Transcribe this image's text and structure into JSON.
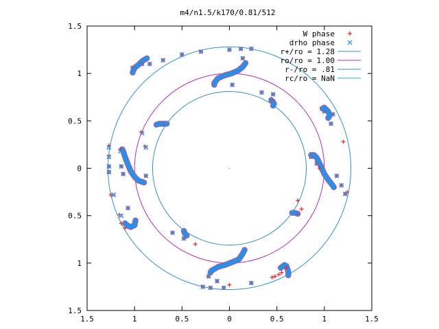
{
  "chart_data": {
    "type": "scatter",
    "title": "m4/n1.5/k170/0.81/512",
    "xlim": [
      -1.5,
      1.5
    ],
    "ylim": [
      -1.5,
      1.5
    ],
    "x_ticks": [
      -1.5,
      -1,
      -0.5,
      0,
      0.5,
      1,
      1.5
    ],
    "y_ticks": [
      -1.5,
      -1,
      -0.5,
      0,
      0.5,
      1,
      1.5
    ],
    "x_tick_labels": [
      "1.5",
      "1",
      "0.5",
      "0",
      "0.5",
      "1",
      "1.5"
    ],
    "y_tick_labels": [
      "1.5",
      "1",
      "0.5",
      "0",
      "0.5",
      "1",
      "1.5"
    ],
    "grid": false,
    "legend_position": "top-right",
    "legend": [
      {
        "label": "W phase",
        "marker": "plus",
        "color": "#e8302a"
      },
      {
        "label": "drho phase",
        "marker": "cross",
        "color": "#2b8fe8"
      },
      {
        "label": "r+/ro = 1.28",
        "marker": "line",
        "color": "#2d93c7"
      },
      {
        "label": "ro/ro = 1.00",
        "marker": "line",
        "color": "#b52ab5"
      },
      {
        "label": "r-/ro = .81",
        "marker": "line",
        "color": "#2d93c7"
      },
      {
        "label": "rc/ro = NaN",
        "marker": "line",
        "color": "#20b7c0"
      }
    ],
    "circles": [
      {
        "name": "r+/ro = 1.28",
        "r": 1.28,
        "color": "#2d93c7"
      },
      {
        "name": "ro/ro = 1.00",
        "r": 1.0,
        "color": "#b52ab5"
      },
      {
        "name": "r-/ro = .81",
        "r": 0.81,
        "color": "#2d93c7"
      }
    ],
    "series": [
      {
        "name": "W phase",
        "color": "#e8302a",
        "marker": "plus",
        "points": [
          [
            -1.27,
            0.24
          ],
          [
            -1.27,
            0.13
          ],
          [
            -1.27,
            0.02
          ],
          [
            -1.27,
            -0.04
          ],
          [
            -1.15,
            0.2
          ],
          [
            -1.14,
            0.02
          ],
          [
            -1.12,
            -0.06
          ],
          [
            -1.25,
            -0.28
          ],
          [
            -1.07,
            -0.42
          ],
          [
            -1.16,
            -0.49
          ],
          [
            -1.14,
            -0.58
          ],
          [
            -1.1,
            -0.63
          ],
          [
            -0.93,
            0.38
          ],
          [
            -0.89,
            0.23
          ],
          [
            -0.88,
            -0.08
          ],
          [
            -0.7,
            0.46
          ],
          [
            -1.02,
            1.06
          ],
          [
            -0.92,
            1.1
          ],
          [
            -0.84,
            1.1
          ],
          [
            -0.7,
            1.14
          ],
          [
            -0.5,
            1.2
          ],
          [
            -0.3,
            1.23
          ],
          [
            -0.6,
            -0.68
          ],
          [
            -0.48,
            -0.74
          ],
          [
            -0.36,
            -0.8
          ],
          [
            -0.28,
            -1.25
          ],
          [
            -0.2,
            -1.26
          ],
          [
            -0.06,
            -1.26
          ],
          [
            0.0,
            -1.23
          ],
          [
            -0.22,
            -1.14
          ],
          [
            -0.13,
            -1.19
          ],
          [
            0.23,
            -1.21
          ],
          [
            0.0,
            1.25
          ],
          [
            0.12,
            1.26
          ],
          [
            0.23,
            1.26
          ],
          [
            0.14,
            1.16
          ],
          [
            0.03,
            0.88
          ],
          [
            0.34,
            0.8
          ],
          [
            0.46,
            0.78
          ],
          [
            0.45,
            0.71
          ],
          [
            0.45,
            -1.15
          ],
          [
            0.48,
            -1.14
          ],
          [
            0.52,
            -1.12
          ],
          [
            0.55,
            -1.1
          ],
          [
            0.6,
            -1.05
          ],
          [
            0.72,
            -0.48
          ],
          [
            0.76,
            -0.43
          ],
          [
            0.72,
            -0.34
          ],
          [
            0.86,
            0.12
          ],
          [
            0.92,
            0.05
          ],
          [
            0.95,
            0.0
          ],
          [
            1.0,
            0.6
          ],
          [
            1.07,
            0.47
          ],
          [
            1.09,
            0.57
          ],
          [
            1.2,
            0.28
          ],
          [
            1.13,
            -0.08
          ],
          [
            1.18,
            -0.18
          ],
          [
            1.22,
            -0.27
          ],
          [
            1.24,
            -0.25
          ]
        ]
      },
      {
        "name": "drho phase",
        "color": "#2b8fe8",
        "marker": "cross",
        "points": [
          [
            -1.27,
            0.22
          ],
          [
            -1.27,
            0.12
          ],
          [
            -1.27,
            0.02
          ],
          [
            -1.27,
            -0.04
          ],
          [
            -1.15,
            0.18
          ],
          [
            -1.14,
            0.02
          ],
          [
            -1.12,
            -0.06
          ],
          [
            -1.22,
            -0.28
          ],
          [
            -1.07,
            -0.42
          ],
          [
            -1.14,
            -0.5
          ],
          [
            -1.1,
            -0.58
          ],
          [
            -0.92,
            0.37
          ],
          [
            -0.88,
            0.22
          ],
          [
            -0.88,
            -0.08
          ],
          [
            -0.7,
            0.46
          ],
          [
            -1.02,
            1.06
          ],
          [
            -0.92,
            1.1
          ],
          [
            -0.84,
            1.1
          ],
          [
            -0.7,
            1.14
          ],
          [
            -0.5,
            1.2
          ],
          [
            -0.3,
            1.23
          ],
          [
            -0.6,
            -0.68
          ],
          [
            -0.48,
            -0.74
          ],
          [
            -0.28,
            -1.25
          ],
          [
            -0.2,
            -1.26
          ],
          [
            -0.06,
            -1.26
          ],
          [
            -0.22,
            -1.14
          ],
          [
            -0.13,
            -1.19
          ],
          [
            0.23,
            -1.21
          ],
          [
            0.0,
            1.25
          ],
          [
            0.12,
            1.26
          ],
          [
            0.23,
            1.26
          ],
          [
            0.14,
            1.16
          ],
          [
            0.03,
            0.88
          ],
          [
            0.34,
            0.8
          ],
          [
            0.46,
            0.78
          ],
          [
            0.45,
            0.71
          ],
          [
            0.72,
            -0.48
          ],
          [
            0.86,
            0.12
          ],
          [
            0.92,
            0.05
          ],
          [
            1.0,
            0.6
          ],
          [
            1.07,
            0.47
          ],
          [
            1.09,
            0.57
          ],
          [
            1.13,
            -0.08
          ],
          [
            1.18,
            -0.18
          ],
          [
            1.22,
            -0.27
          ]
        ]
      }
    ],
    "dense_curves": [
      {
        "name": "curl-left",
        "color": "#2b8fe8",
        "points": [
          [
            -1.13,
            0.2
          ],
          [
            -1.12,
            0.18
          ],
          [
            -1.1,
            0.12
          ],
          [
            -1.07,
            0.04
          ],
          [
            -1.04,
            -0.03
          ],
          [
            -1.0,
            -0.09
          ],
          [
            -0.96,
            -0.13
          ],
          [
            -0.9,
            -0.15
          ]
        ]
      },
      {
        "name": "curl-right",
        "color": "#2b8fe8",
        "points": [
          [
            0.86,
            0.14
          ],
          [
            0.89,
            0.14
          ],
          [
            0.92,
            0.11
          ],
          [
            0.96,
            0.03
          ],
          [
            1.0,
            -0.06
          ],
          [
            1.04,
            -0.12
          ],
          [
            1.08,
            -0.17
          ],
          [
            1.1,
            -0.2
          ]
        ]
      },
      {
        "name": "curl-top",
        "color": "#2b8fe8",
        "points": [
          [
            -0.16,
            0.88
          ],
          [
            -0.16,
            0.9
          ],
          [
            -0.12,
            0.95
          ],
          [
            -0.05,
            0.98
          ],
          [
            0.02,
            1.0
          ],
          [
            0.09,
            1.03
          ],
          [
            0.14,
            1.07
          ],
          [
            0.17,
            1.11
          ]
        ]
      },
      {
        "name": "curl-bottom",
        "color": "#2b8fe8",
        "points": [
          [
            -0.2,
            -1.1
          ],
          [
            -0.19,
            -1.08
          ],
          [
            -0.12,
            -1.04
          ],
          [
            -0.05,
            -1.02
          ],
          [
            0.03,
            -0.99
          ],
          [
            0.1,
            -0.96
          ],
          [
            0.14,
            -0.9
          ],
          [
            0.16,
            -0.86
          ]
        ]
      },
      {
        "name": "curl-upper-left",
        "color": "#2b8fe8",
        "points": [
          [
            -1.02,
            1.01
          ],
          [
            -1.0,
            1.06
          ],
          [
            -0.96,
            1.09
          ],
          [
            -0.92,
            1.13
          ],
          [
            -0.87,
            1.16
          ]
        ]
      },
      {
        "name": "curl-lower-left",
        "color": "#2b8fe8",
        "points": [
          [
            -1.1,
            -0.58
          ],
          [
            -1.08,
            -0.6
          ],
          [
            -1.04,
            -0.62
          ],
          [
            -1.0,
            -0.6
          ],
          [
            -0.99,
            -0.55
          ]
        ]
      },
      {
        "name": "curl-upper-right",
        "color": "#2b8fe8",
        "points": [
          [
            0.98,
            0.63
          ],
          [
            1.0,
            0.64
          ],
          [
            1.04,
            0.6
          ],
          [
            1.06,
            0.56
          ],
          [
            1.04,
            0.53
          ]
        ]
      },
      {
        "name": "curl-lower-right",
        "color": "#2b8fe8",
        "points": [
          [
            0.54,
            -1.05
          ],
          [
            0.58,
            -1.02
          ],
          [
            0.6,
            -1.03
          ],
          [
            0.62,
            -1.09
          ],
          [
            0.62,
            -1.13
          ]
        ]
      },
      {
        "name": "curl-mid-left",
        "color": "#2b8fe8",
        "points": [
          [
            -0.77,
            0.46
          ],
          [
            -0.74,
            0.47
          ],
          [
            -0.7,
            0.47
          ],
          [
            -0.66,
            0.47
          ]
        ]
      },
      {
        "name": "curl-mid-right",
        "color": "#2b8fe8",
        "points": [
          [
            0.66,
            -0.47
          ],
          [
            0.69,
            -0.47
          ],
          [
            0.72,
            -0.48
          ]
        ]
      },
      {
        "name": "curl-mid-top",
        "color": "#2b8fe8",
        "points": [
          [
            0.44,
            0.72
          ],
          [
            0.46,
            0.7
          ],
          [
            0.47,
            0.68
          ],
          [
            0.46,
            0.66
          ]
        ]
      },
      {
        "name": "curl-mid-bottom",
        "color": "#2b8fe8",
        "points": [
          [
            -0.48,
            -0.66
          ],
          [
            -0.47,
            -0.69
          ],
          [
            -0.45,
            -0.71
          ]
        ]
      }
    ]
  }
}
